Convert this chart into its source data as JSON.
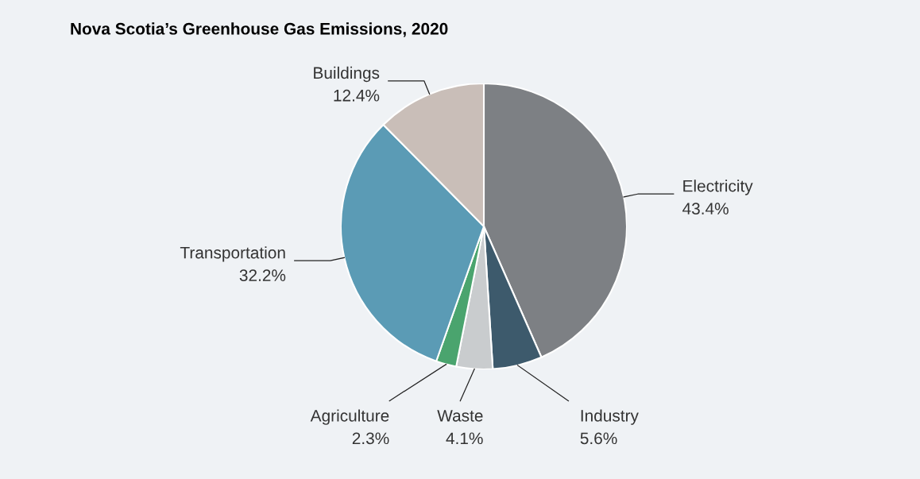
{
  "chart_data": {
    "type": "pie",
    "title": "Nova Scotia’s Greenhouse Gas Emissions, 2020",
    "categories": [
      "Electricity",
      "Industry",
      "Waste",
      "Agriculture",
      "Transportation",
      "Buildings"
    ],
    "values": [
      43.4,
      5.6,
      4.1,
      2.3,
      32.2,
      12.4
    ],
    "colors": [
      "#7d8084",
      "#3d5a6c",
      "#c9ccce",
      "#4aa46e",
      "#5b9bb5",
      "#c9beb8"
    ],
    "value_labels": [
      "43.4%",
      "5.6%",
      "4.1%",
      "2.3%",
      "32.2%",
      "12.4%"
    ]
  }
}
